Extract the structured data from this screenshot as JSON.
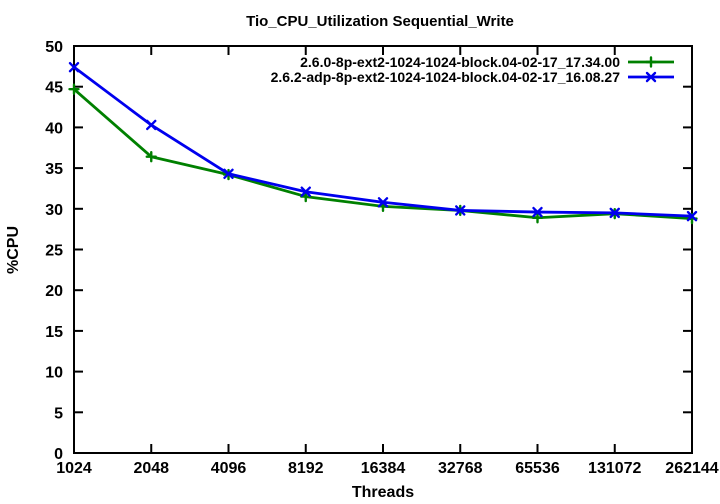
{
  "title": "Tio_CPU_Utilization Sequential_Write",
  "chart_data": {
    "type": "line",
    "title": "Tio_CPU_Utilization Sequential_Write",
    "xlabel": "Threads",
    "ylabel": "%CPU",
    "x_scale": "log2-categorical",
    "categories": [
      "1024",
      "2048",
      "4096",
      "8192",
      "16384",
      "32768",
      "65536",
      "131072",
      "262144"
    ],
    "ylim": [
      0,
      50
    ],
    "ytick_step": 5,
    "grid": false,
    "legend_position": "top-right-inside",
    "border_color": "#000000",
    "background_color": "#ffffff",
    "series": [
      {
        "name": "2.6.0-8p-ext2-1024-1024-block.04-02-17_17.34.00",
        "color": "#008000",
        "marker": "plus",
        "values": [
          44.7,
          36.4,
          34.2,
          31.5,
          30.3,
          29.8,
          28.9,
          29.4,
          28.8
        ]
      },
      {
        "name": "2.6.2-adp-8p-ext2-1024-1024-block.04-02-17_16.08.27",
        "color": "#0000ee",
        "marker": "cross",
        "values": [
          47.4,
          40.3,
          34.3,
          32.1,
          30.8,
          29.8,
          29.6,
          29.5,
          29.1
        ]
      }
    ]
  }
}
